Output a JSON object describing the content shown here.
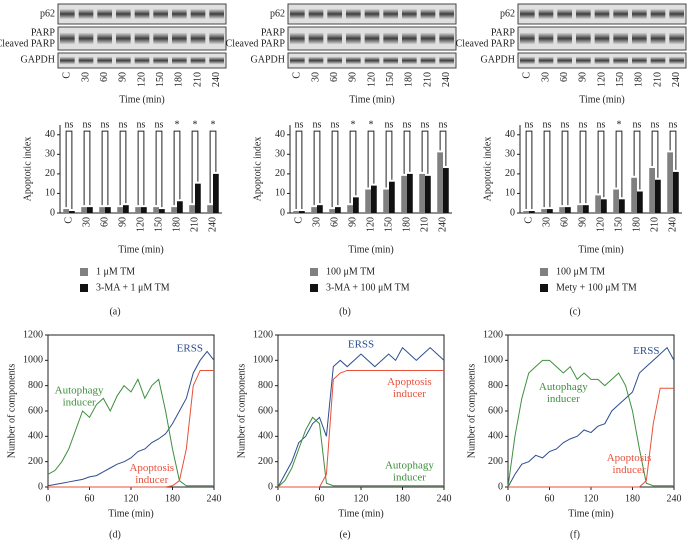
{
  "blot": {
    "rows": [
      "p62",
      "PARP",
      "Cleaved PARP",
      "GAPDH"
    ],
    "lanes": [
      "C",
      "30",
      "60",
      "90",
      "120",
      "150",
      "180",
      "210",
      "240"
    ],
    "xlabel": "Time (min)"
  },
  "chart_data": [
    {
      "type": "bar",
      "panel_label": "(a)",
      "ylabel": "Apoptotic index",
      "xlabel": "Time (min)",
      "categories": [
        "C",
        "30",
        "60",
        "90",
        "120",
        "150",
        "180",
        "210",
        "240"
      ],
      "series": [
        {
          "name": "1 μM TM",
          "color": "#808080",
          "values": [
            2,
            3,
            3,
            3,
            3,
            3,
            3,
            4,
            4
          ]
        },
        {
          "name": "3-MA + 1 μM TM",
          "color": "#111111",
          "values": [
            1,
            3,
            3,
            4,
            3,
            2,
            6,
            15,
            20
          ]
        }
      ],
      "annotations": [
        "ns",
        "ns",
        "ns",
        "ns",
        "ns",
        "ns",
        "*",
        "*",
        "*"
      ],
      "ylim": [
        0,
        45
      ],
      "yticks": [
        0,
        10,
        20,
        30,
        40
      ]
    },
    {
      "type": "bar",
      "panel_label": "(b)",
      "ylabel": "Apoptotic index",
      "xlabel": "Time (min)",
      "categories": [
        "C",
        "30",
        "60",
        "90",
        "120",
        "150",
        "180",
        "210",
        "240"
      ],
      "series": [
        {
          "name": "100 μM TM",
          "color": "#808080",
          "values": [
            1,
            3,
            2,
            4,
            12,
            12,
            19,
            20,
            31
          ]
        },
        {
          "name": "3-MA + 100 μM TM",
          "color": "#111111",
          "values": [
            1,
            4,
            3,
            8,
            14,
            16,
            20,
            19,
            23
          ]
        }
      ],
      "annotations": [
        "ns",
        "ns",
        "ns",
        "*",
        "*",
        "ns",
        "ns",
        "ns",
        "ns"
      ],
      "ylim": [
        0,
        45
      ],
      "yticks": [
        0,
        10,
        20,
        30,
        40
      ]
    },
    {
      "type": "bar",
      "panel_label": "(c)",
      "ylabel": "Apoptotic index",
      "xlabel": "Time (min)",
      "categories": [
        "C",
        "30",
        "60",
        "90",
        "120",
        "150",
        "180",
        "210",
        "240"
      ],
      "series": [
        {
          "name": "100 μM TM",
          "color": "#808080",
          "values": [
            1,
            2,
            3,
            4,
            9,
            12,
            18,
            23,
            31
          ]
        },
        {
          "name": "Mety + 100 μM TM",
          "color": "#111111",
          "values": [
            1,
            2,
            3,
            4,
            7,
            7,
            11,
            17,
            21
          ]
        }
      ],
      "annotations": [
        "ns",
        "ns",
        "ns",
        "ns",
        "ns",
        "*",
        "ns",
        "ns",
        "ns"
      ],
      "ylim": [
        0,
        45
      ],
      "yticks": [
        0,
        10,
        20,
        30,
        40
      ]
    },
    {
      "type": "line",
      "panel_label": "(d)",
      "ylabel": "Number of components",
      "xlabel": "Time (min)",
      "x": [
        0,
        10,
        20,
        30,
        40,
        50,
        60,
        70,
        80,
        90,
        100,
        110,
        120,
        130,
        140,
        150,
        160,
        170,
        180,
        190,
        200,
        210,
        220,
        230,
        240
      ],
      "series": [
        {
          "name": "ERSS",
          "color": "#2c4f8f",
          "values": [
            10,
            20,
            30,
            40,
            50,
            60,
            80,
            90,
            120,
            150,
            180,
            200,
            230,
            280,
            300,
            350,
            380,
            420,
            500,
            600,
            700,
            900,
            1000,
            1070,
            1000
          ]
        },
        {
          "name": "Autophagy inducer",
          "color": "#3f8f3f",
          "values": [
            100,
            130,
            200,
            300,
            450,
            600,
            550,
            650,
            700,
            600,
            720,
            800,
            750,
            850,
            700,
            800,
            850,
            600,
            300,
            50,
            10,
            10,
            10,
            10,
            10
          ]
        },
        {
          "name": "Apoptosis inducer",
          "color": "#e8503a",
          "values": [
            0,
            0,
            0,
            0,
            0,
            0,
            0,
            0,
            0,
            0,
            0,
            0,
            0,
            0,
            0,
            0,
            0,
            0,
            10,
            50,
            300,
            800,
            920,
            920,
            920
          ]
        }
      ],
      "xlim": [
        0,
        240
      ],
      "ylim": [
        0,
        1200
      ],
      "xticks": [
        0,
        60,
        120,
        180,
        240
      ],
      "yticks": [
        0,
        200,
        400,
        600,
        800,
        1000,
        1200
      ]
    },
    {
      "type": "line",
      "panel_label": "(e)",
      "ylabel": "Number of components",
      "xlabel": "Time (min)",
      "x": [
        0,
        10,
        20,
        30,
        40,
        50,
        60,
        70,
        80,
        90,
        100,
        110,
        120,
        130,
        140,
        150,
        160,
        170,
        180,
        190,
        200,
        210,
        220,
        230,
        240
      ],
      "series": [
        {
          "name": "ERSS",
          "color": "#2c4f8f",
          "values": [
            0,
            100,
            200,
            350,
            400,
            500,
            550,
            400,
            950,
            1000,
            950,
            1000,
            1050,
            1000,
            950,
            1000,
            1050,
            1000,
            1100,
            1050,
            1000,
            1050,
            1100,
            1050,
            1000
          ]
        },
        {
          "name": "Autophagy inducer",
          "color": "#3f8f3f",
          "values": [
            0,
            50,
            150,
            300,
            450,
            550,
            500,
            30,
            10,
            10,
            10,
            10,
            10,
            10,
            10,
            10,
            10,
            10,
            10,
            10,
            10,
            10,
            10,
            10,
            10
          ]
        },
        {
          "name": "Apoptosis inducer",
          "color": "#e8503a",
          "values": [
            0,
            0,
            0,
            0,
            0,
            0,
            0,
            100,
            850,
            900,
            920,
            920,
            920,
            920,
            920,
            920,
            920,
            920,
            920,
            920,
            920,
            920,
            920,
            920,
            920
          ]
        }
      ],
      "xlim": [
        0,
        240
      ],
      "ylim": [
        0,
        1200
      ],
      "xticks": [
        0,
        60,
        120,
        180,
        240
      ],
      "yticks": [
        0,
        200,
        400,
        600,
        800,
        1000,
        1200
      ]
    },
    {
      "type": "line",
      "panel_label": "(f)",
      "ylabel": "Number of components",
      "xlabel": "Time (min)",
      "x": [
        0,
        10,
        20,
        30,
        40,
        50,
        60,
        70,
        80,
        90,
        100,
        110,
        120,
        130,
        140,
        150,
        160,
        170,
        180,
        190,
        200,
        210,
        220,
        230,
        240
      ],
      "series": [
        {
          "name": "ERSS",
          "color": "#2c4f8f",
          "values": [
            0,
            100,
            180,
            200,
            250,
            230,
            280,
            300,
            350,
            380,
            400,
            450,
            430,
            480,
            500,
            600,
            650,
            700,
            750,
            900,
            950,
            1000,
            1050,
            1100,
            1000
          ]
        },
        {
          "name": "Autophagy inducer",
          "color": "#3f8f3f",
          "values": [
            0,
            400,
            700,
            900,
            950,
            1000,
            1000,
            950,
            900,
            950,
            850,
            900,
            850,
            850,
            800,
            850,
            900,
            800,
            600,
            300,
            30,
            10,
            10,
            10,
            10
          ]
        },
        {
          "name": "Apoptosis inducer",
          "color": "#e8503a",
          "values": [
            0,
            0,
            0,
            0,
            0,
            0,
            0,
            0,
            0,
            0,
            0,
            0,
            0,
            0,
            0,
            0,
            0,
            0,
            0,
            0,
            50,
            500,
            780,
            780,
            780
          ]
        }
      ],
      "xlim": [
        0,
        240
      ],
      "ylim": [
        0,
        1200
      ],
      "xticks": [
        0,
        60,
        120,
        180,
        240
      ],
      "yticks": [
        0,
        200,
        400,
        600,
        800,
        1000,
        1200
      ]
    }
  ]
}
